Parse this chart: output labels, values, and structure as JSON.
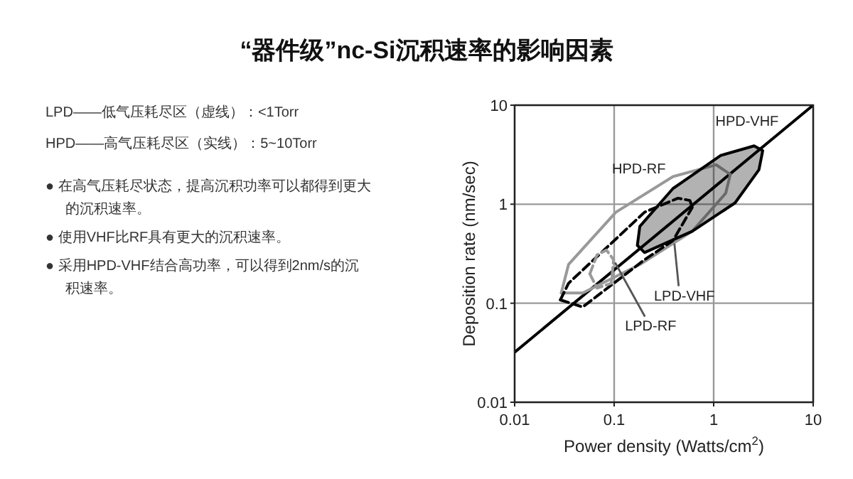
{
  "chart_data": {
    "type": "line",
    "title": "“器件级”nc-Si沉积速率的影响因素",
    "xlabel": "Power density (Watts/cm$^{2}$)",
    "ylabel": "Deposition rate (nm/sec)",
    "log": "xy",
    "xlim": [
      0.01,
      10
    ],
    "ylim": [
      0.01,
      10
    ],
    "xticks": [
      0.01,
      0.1,
      1,
      10
    ],
    "yticks": [
      0.01,
      0.1,
      1,
      10
    ],
    "grid": true,
    "series": [
      {
        "color": "#000000",
        "line_style": "solid",
        "x": [
          0.01,
          10
        ],
        "values": [
          0.032,
          10
        ]
      },
      {
        "color": "#999999",
        "line_style": "solid",
        "x": [
          0.0294,
          0.0483,
          0.181,
          0.61,
          1.32,
          1.47
        ],
        "values": [
          0.127,
          0.127,
          0.246,
          0.533,
          1.29,
          2.0
        ]
      },
      {
        "name": "HPD-RF",
        "color": "#999999",
        "line_style": "solid",
        "x": [
          0.0294,
          0.0348,
          0.104,
          0.39,
          1.06,
          1.47
        ],
        "values": [
          0.127,
          0.246,
          0.83,
          1.9,
          2.5,
          2.0
        ]
      },
      {
        "name": "HPD-VHF",
        "type": "area",
        "color": "#000000",
        "line_style": "solid",
        "x": [
          0.171,
          0.202,
          0.61,
          1.64,
          2.85,
          3.11,
          2.55,
          1.18,
          0.39,
          0.181,
          0.171
        ],
        "values": [
          0.384,
          0.325,
          0.533,
          1.03,
          2.23,
          3.47,
          3.88,
          3.11,
          1.44,
          0.596,
          0.384
        ]
      },
      {
        "name": "LPD-VHF",
        "color": "#000000",
        "line_style": "dashed",
        "x": [
          0.0288,
          0.0483,
          0.202,
          0.39,
          0.61
        ],
        "values": [
          0.108,
          0.0916,
          0.275,
          0.429,
          0.93
        ]
      },
      {
        "color": "#000000",
        "line_style": "dashed",
        "x": [
          0.0288,
          0.0348,
          0.202,
          0.438,
          0.577,
          0.61
        ],
        "values": [
          0.108,
          0.159,
          0.83,
          1.15,
          1.09,
          0.93
        ]
      },
      {
        "name": "LPD-RF",
        "color": "#999999",
        "line_style": "dashed",
        "x": [
          0.057,
          0.0673,
          0.0935,
          0.0988
        ],
        "values": [
          0.198,
          0.142,
          0.159,
          0.275
        ]
      },
      {
        "color": "#999999",
        "line_style": "dashed",
        "x": [
          0.057,
          0.0673,
          0.0837,
          0.0988
        ],
        "values": [
          0.198,
          0.308,
          0.344,
          0.275
        ]
      }
    ],
    "annotations": [
      "LPD——低气压耗尽区（虚线）：<1Torr",
      "HPD——高气压耗尽区（实线）：5~10Torr",
      "● 在高气压耗尽状态，提高沉积功率可以都得到更大的沉积速率。",
      "● 使用VHF比RF具有更大的沉积速率。",
      "● 采用HPD-VHF结合高功率，可以得到2nm/s的沉积速率。"
    ]
  }
}
